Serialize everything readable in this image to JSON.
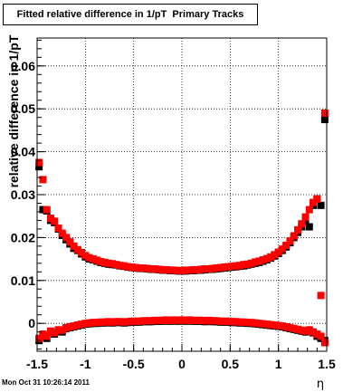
{
  "window": {
    "title": "Fitted relative difference in 1/pT  Primary Tracks",
    "timestamp": "Mon Oct 31 10:26:14 2011"
  },
  "chart_data": {
    "type": "scatter",
    "title": "Fitted relative difference in 1/pT  Primary Tracks",
    "xlabel": "η",
    "ylabel": "relative difference in 1/pT",
    "xlim": [
      -1.5,
      1.5
    ],
    "ylim": [
      -0.0065,
      0.0665
    ],
    "xticks": [
      -1.5,
      -1,
      -0.5,
      0,
      0.5,
      1,
      1.5
    ],
    "xtick_labels": [
      "-1.5",
      "-1",
      "-0.5",
      "0",
      "0.5",
      "1",
      "1.5"
    ],
    "yticks": [
      0,
      0.01,
      0.02,
      0.03,
      0.04,
      0.05,
      0.06
    ],
    "ytick_labels": [
      "0",
      "0.01",
      "0.02",
      "0.03",
      "0.04",
      "0.05",
      "0.06"
    ],
    "grid": true,
    "series": [
      {
        "color": "#000000",
        "marker": "square",
        "points": [
          [
            -1.48,
            0.0365
          ],
          [
            -1.44,
            0.0265
          ],
          [
            -1.4,
            0.0262
          ],
          [
            -1.36,
            0.024
          ],
          [
            -1.32,
            0.0235
          ],
          [
            -1.28,
            0.022
          ],
          [
            -1.24,
            0.0205
          ],
          [
            -1.2,
            0.0195
          ],
          [
            -1.16,
            0.0185
          ],
          [
            -1.12,
            0.0175
          ],
          [
            -1.08,
            0.017
          ],
          [
            -1.04,
            0.0162
          ],
          [
            -1.0,
            0.0155
          ],
          [
            -0.96,
            0.015
          ],
          [
            -0.92,
            0.0148
          ],
          [
            -0.88,
            0.0145
          ],
          [
            -0.84,
            0.0142
          ],
          [
            -0.8,
            0.014
          ],
          [
            -0.76,
            0.0138
          ],
          [
            -0.72,
            0.0137
          ],
          [
            -0.68,
            0.0136
          ],
          [
            -0.64,
            0.0134
          ],
          [
            -0.6,
            0.0133
          ],
          [
            -0.56,
            0.0131
          ],
          [
            -0.52,
            0.013
          ],
          [
            -0.48,
            0.0129
          ],
          [
            -0.44,
            0.0128
          ],
          [
            -0.4,
            0.0128
          ],
          [
            -0.36,
            0.0127
          ],
          [
            -0.32,
            0.0126
          ],
          [
            -0.28,
            0.0126
          ],
          [
            -0.24,
            0.0125
          ],
          [
            -0.2,
            0.0124
          ],
          [
            -0.16,
            0.0124
          ],
          [
            -0.12,
            0.0123
          ],
          [
            -0.08,
            0.0123
          ],
          [
            -0.04,
            0.0122
          ],
          [
            0.0,
            0.0122
          ],
          [
            0.04,
            0.0122
          ],
          [
            0.08,
            0.0123
          ],
          [
            0.12,
            0.0123
          ],
          [
            0.16,
            0.0124
          ],
          [
            0.2,
            0.0124
          ],
          [
            0.24,
            0.0125
          ],
          [
            0.28,
            0.0126
          ],
          [
            0.32,
            0.0126
          ],
          [
            0.36,
            0.0127
          ],
          [
            0.4,
            0.0128
          ],
          [
            0.44,
            0.0129
          ],
          [
            0.48,
            0.013
          ],
          [
            0.52,
            0.0131
          ],
          [
            0.56,
            0.0132
          ],
          [
            0.6,
            0.0133
          ],
          [
            0.64,
            0.0134
          ],
          [
            0.68,
            0.0136
          ],
          [
            0.72,
            0.0138
          ],
          [
            0.76,
            0.014
          ],
          [
            0.8,
            0.0142
          ],
          [
            0.84,
            0.0145
          ],
          [
            0.88,
            0.0148
          ],
          [
            0.92,
            0.0152
          ],
          [
            0.96,
            0.0157
          ],
          [
            1.0,
            0.0163
          ],
          [
            1.04,
            0.017
          ],
          [
            1.08,
            0.0178
          ],
          [
            1.12,
            0.0188
          ],
          [
            1.16,
            0.02
          ],
          [
            1.2,
            0.0212
          ],
          [
            1.24,
            0.0225
          ],
          [
            1.28,
            0.024
          ],
          [
            1.32,
            0.0225
          ],
          [
            1.36,
            0.0275
          ],
          [
            1.4,
            0.029
          ],
          [
            1.44,
            0.0275
          ],
          [
            1.48,
            0.0475
          ],
          [
            -1.48,
            -0.004
          ],
          [
            -1.44,
            -0.003
          ],
          [
            -1.4,
            -0.0035
          ],
          [
            -1.36,
            -0.002
          ],
          [
            -1.32,
            -0.0025
          ],
          [
            -1.28,
            -0.0018
          ],
          [
            -1.24,
            -0.002
          ],
          [
            -1.2,
            -0.0012
          ],
          [
            -1.16,
            -0.001
          ],
          [
            -1.12,
            -0.0008
          ],
          [
            -1.08,
            -0.0006
          ],
          [
            -1.04,
            -0.0004
          ],
          [
            -1.0,
            -0.0002
          ],
          [
            -0.96,
            -0.0001
          ],
          [
            -0.92,
            0.0
          ],
          [
            -0.88,
            0.0
          ],
          [
            -0.84,
            0.0001
          ],
          [
            -0.8,
            0.0001
          ],
          [
            -0.76,
            0.0002
          ],
          [
            -0.72,
            0.0001
          ],
          [
            -0.68,
            0.0002
          ],
          [
            -0.64,
            0.0002
          ],
          [
            -0.6,
            0.0001
          ],
          [
            -0.56,
            0.0002
          ],
          [
            -0.52,
            0.0003
          ],
          [
            -0.48,
            0.0003
          ],
          [
            -0.44,
            0.0003
          ],
          [
            -0.4,
            0.0004
          ],
          [
            -0.36,
            0.0004
          ],
          [
            -0.32,
            0.0004
          ],
          [
            -0.28,
            0.0005
          ],
          [
            -0.24,
            0.0005
          ],
          [
            -0.2,
            0.0005
          ],
          [
            -0.16,
            0.0006
          ],
          [
            -0.12,
            0.0005
          ],
          [
            -0.08,
            0.0006
          ],
          [
            -0.04,
            0.0005
          ],
          [
            0.0,
            0.0006
          ],
          [
            0.04,
            0.0005
          ],
          [
            0.08,
            0.0006
          ],
          [
            0.12,
            0.0005
          ],
          [
            0.16,
            0.0005
          ],
          [
            0.2,
            0.0005
          ],
          [
            0.24,
            0.0004
          ],
          [
            0.28,
            0.0005
          ],
          [
            0.32,
            0.0004
          ],
          [
            0.36,
            0.0004
          ],
          [
            0.4,
            0.0003
          ],
          [
            0.44,
            0.0003
          ],
          [
            0.48,
            0.0003
          ],
          [
            0.52,
            0.0002
          ],
          [
            0.56,
            0.0002
          ],
          [
            0.6,
            0.0001
          ],
          [
            0.64,
            0.0001
          ],
          [
            0.68,
            0.0
          ],
          [
            0.72,
            0.0
          ],
          [
            0.76,
            -0.0001
          ],
          [
            0.8,
            -0.0002
          ],
          [
            0.84,
            -0.0003
          ],
          [
            0.88,
            -0.0004
          ],
          [
            0.92,
            -0.0005
          ],
          [
            0.96,
            -0.0006
          ],
          [
            1.0,
            -0.0007
          ],
          [
            1.04,
            -0.0008
          ],
          [
            1.08,
            -0.001
          ],
          [
            1.12,
            -0.0012
          ],
          [
            1.16,
            -0.0014
          ],
          [
            1.2,
            -0.0016
          ],
          [
            1.24,
            -0.0018
          ],
          [
            1.28,
            -0.002
          ],
          [
            1.32,
            -0.0018
          ],
          [
            1.36,
            -0.0022
          ],
          [
            1.4,
            -0.003
          ],
          [
            1.44,
            -0.0035
          ],
          [
            1.48,
            -0.004
          ]
        ]
      },
      {
        "color": "#ff0000",
        "marker": "square",
        "points": [
          [
            -1.48,
            0.0375
          ],
          [
            -1.44,
            0.0335
          ],
          [
            -1.4,
            0.0265
          ],
          [
            -1.36,
            0.0245
          ],
          [
            -1.32,
            0.0238
          ],
          [
            -1.28,
            0.0222
          ],
          [
            -1.24,
            0.021
          ],
          [
            -1.2,
            0.02
          ],
          [
            -1.16,
            0.019
          ],
          [
            -1.12,
            0.018
          ],
          [
            -1.08,
            0.0172
          ],
          [
            -1.04,
            0.0165
          ],
          [
            -1.0,
            0.0158
          ],
          [
            -0.96,
            0.0153
          ],
          [
            -0.92,
            0.015
          ],
          [
            -0.88,
            0.0147
          ],
          [
            -0.84,
            0.0144
          ],
          [
            -0.8,
            0.0142
          ],
          [
            -0.76,
            0.014
          ],
          [
            -0.72,
            0.0139
          ],
          [
            -0.68,
            0.0137
          ],
          [
            -0.64,
            0.0135
          ],
          [
            -0.6,
            0.0134
          ],
          [
            -0.56,
            0.0132
          ],
          [
            -0.52,
            0.0131
          ],
          [
            -0.48,
            0.013
          ],
          [
            -0.44,
            0.0129
          ],
          [
            -0.4,
            0.0129
          ],
          [
            -0.36,
            0.0128
          ],
          [
            -0.32,
            0.0127
          ],
          [
            -0.28,
            0.0127
          ],
          [
            -0.24,
            0.0126
          ],
          [
            -0.2,
            0.0125
          ],
          [
            -0.16,
            0.0125
          ],
          [
            -0.12,
            0.0124
          ],
          [
            -0.08,
            0.0124
          ],
          [
            -0.04,
            0.0123
          ],
          [
            0.0,
            0.0123
          ],
          [
            0.04,
            0.0124
          ],
          [
            0.08,
            0.0124
          ],
          [
            0.12,
            0.0125
          ],
          [
            0.16,
            0.0125
          ],
          [
            0.2,
            0.0126
          ],
          [
            0.24,
            0.0127
          ],
          [
            0.28,
            0.0127
          ],
          [
            0.32,
            0.0128
          ],
          [
            0.36,
            0.0129
          ],
          [
            0.4,
            0.013
          ],
          [
            0.44,
            0.0131
          ],
          [
            0.48,
            0.0132
          ],
          [
            0.52,
            0.0133
          ],
          [
            0.56,
            0.0134
          ],
          [
            0.6,
            0.0135
          ],
          [
            0.64,
            0.0137
          ],
          [
            0.68,
            0.0138
          ],
          [
            0.72,
            0.014
          ],
          [
            0.76,
            0.0143
          ],
          [
            0.8,
            0.0145
          ],
          [
            0.84,
            0.0148
          ],
          [
            0.88,
            0.0151
          ],
          [
            0.92,
            0.0155
          ],
          [
            0.96,
            0.016
          ],
          [
            1.0,
            0.0166
          ],
          [
            1.04,
            0.0173
          ],
          [
            1.08,
            0.0182
          ],
          [
            1.12,
            0.0192
          ],
          [
            1.16,
            0.0204
          ],
          [
            1.2,
            0.0218
          ],
          [
            1.24,
            0.0232
          ],
          [
            1.28,
            0.0248
          ],
          [
            1.32,
            0.0265
          ],
          [
            1.36,
            0.0282
          ],
          [
            1.4,
            0.029
          ],
          [
            1.44,
            0.0065
          ],
          [
            1.48,
            0.049
          ],
          [
            -1.48,
            -0.0035
          ],
          [
            -1.44,
            -0.0025
          ],
          [
            -1.4,
            -0.003
          ],
          [
            -1.36,
            -0.0018
          ],
          [
            -1.32,
            -0.0022
          ],
          [
            -1.28,
            -0.0015
          ],
          [
            -1.24,
            -0.0016
          ],
          [
            -1.2,
            -0.001
          ],
          [
            -1.16,
            -0.0008
          ],
          [
            -1.12,
            -0.0006
          ],
          [
            -1.08,
            -0.0004
          ],
          [
            -1.04,
            -0.0002
          ],
          [
            -1.0,
            0.0
          ],
          [
            -0.96,
            0.0001
          ],
          [
            -0.92,
            0.0002
          ],
          [
            -0.88,
            0.0002
          ],
          [
            -0.84,
            0.0003
          ],
          [
            -0.8,
            0.0003
          ],
          [
            -0.76,
            0.0004
          ],
          [
            -0.72,
            0.0003
          ],
          [
            -0.68,
            0.0004
          ],
          [
            -0.64,
            0.0004
          ],
          [
            -0.6,
            0.0003
          ],
          [
            -0.56,
            0.0004
          ],
          [
            -0.52,
            0.0005
          ],
          [
            -0.48,
            0.0005
          ],
          [
            -0.44,
            0.0005
          ],
          [
            -0.4,
            0.0006
          ],
          [
            -0.36,
            0.0006
          ],
          [
            -0.32,
            0.0006
          ],
          [
            -0.28,
            0.0007
          ],
          [
            -0.24,
            0.0007
          ],
          [
            -0.2,
            0.0007
          ],
          [
            -0.16,
            0.0008
          ],
          [
            -0.12,
            0.0007
          ],
          [
            -0.08,
            0.0008
          ],
          [
            -0.04,
            0.0007
          ],
          [
            0.0,
            0.0008
          ],
          [
            0.04,
            0.0007
          ],
          [
            0.08,
            0.0008
          ],
          [
            0.12,
            0.0007
          ],
          [
            0.16,
            0.0007
          ],
          [
            0.2,
            0.0007
          ],
          [
            0.24,
            0.0006
          ],
          [
            0.28,
            0.0007
          ],
          [
            0.32,
            0.0006
          ],
          [
            0.36,
            0.0006
          ],
          [
            0.4,
            0.0005
          ],
          [
            0.44,
            0.0005
          ],
          [
            0.48,
            0.0005
          ],
          [
            0.52,
            0.0004
          ],
          [
            0.56,
            0.0004
          ],
          [
            0.6,
            0.0003
          ],
          [
            0.64,
            0.0003
          ],
          [
            0.68,
            0.0002
          ],
          [
            0.72,
            0.0002
          ],
          [
            0.76,
            0.0001
          ],
          [
            0.8,
            0.0
          ],
          [
            0.84,
            -0.0001
          ],
          [
            0.88,
            -0.0002
          ],
          [
            0.92,
            -0.0003
          ],
          [
            0.96,
            -0.0004
          ],
          [
            1.0,
            -0.0005
          ],
          [
            1.04,
            -0.0006
          ],
          [
            1.08,
            -0.0008
          ],
          [
            1.12,
            -0.001
          ],
          [
            1.16,
            -0.0012
          ],
          [
            1.2,
            -0.0014
          ],
          [
            1.24,
            -0.0016
          ],
          [
            1.28,
            -0.0018
          ],
          [
            1.32,
            -0.0015
          ],
          [
            1.36,
            -0.002
          ],
          [
            1.4,
            -0.0025
          ],
          [
            1.44,
            -0.003
          ],
          [
            1.48,
            -0.0045
          ]
        ]
      }
    ]
  }
}
